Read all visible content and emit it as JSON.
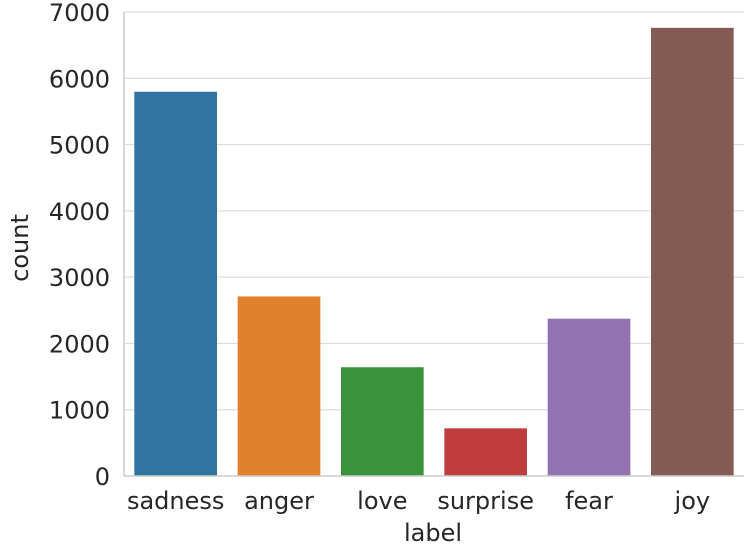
{
  "chart_data": {
    "type": "bar",
    "title": "",
    "xlabel": "label",
    "ylabel": "count",
    "categories": [
      "sadness",
      "anger",
      "love",
      "surprise",
      "fear",
      "joy"
    ],
    "values": [
      5797,
      2709,
      1641,
      719,
      2373,
      6761
    ],
    "colors": [
      "#3274a1",
      "#e1812c",
      "#3a923a",
      "#c03d3e",
      "#9372b2",
      "#845b53"
    ],
    "ylim": [
      0,
      7000
    ],
    "yticks": [
      0,
      1000,
      2000,
      3000,
      4000,
      5000,
      6000,
      7000
    ],
    "grid": "horizontal",
    "legend": "none"
  }
}
